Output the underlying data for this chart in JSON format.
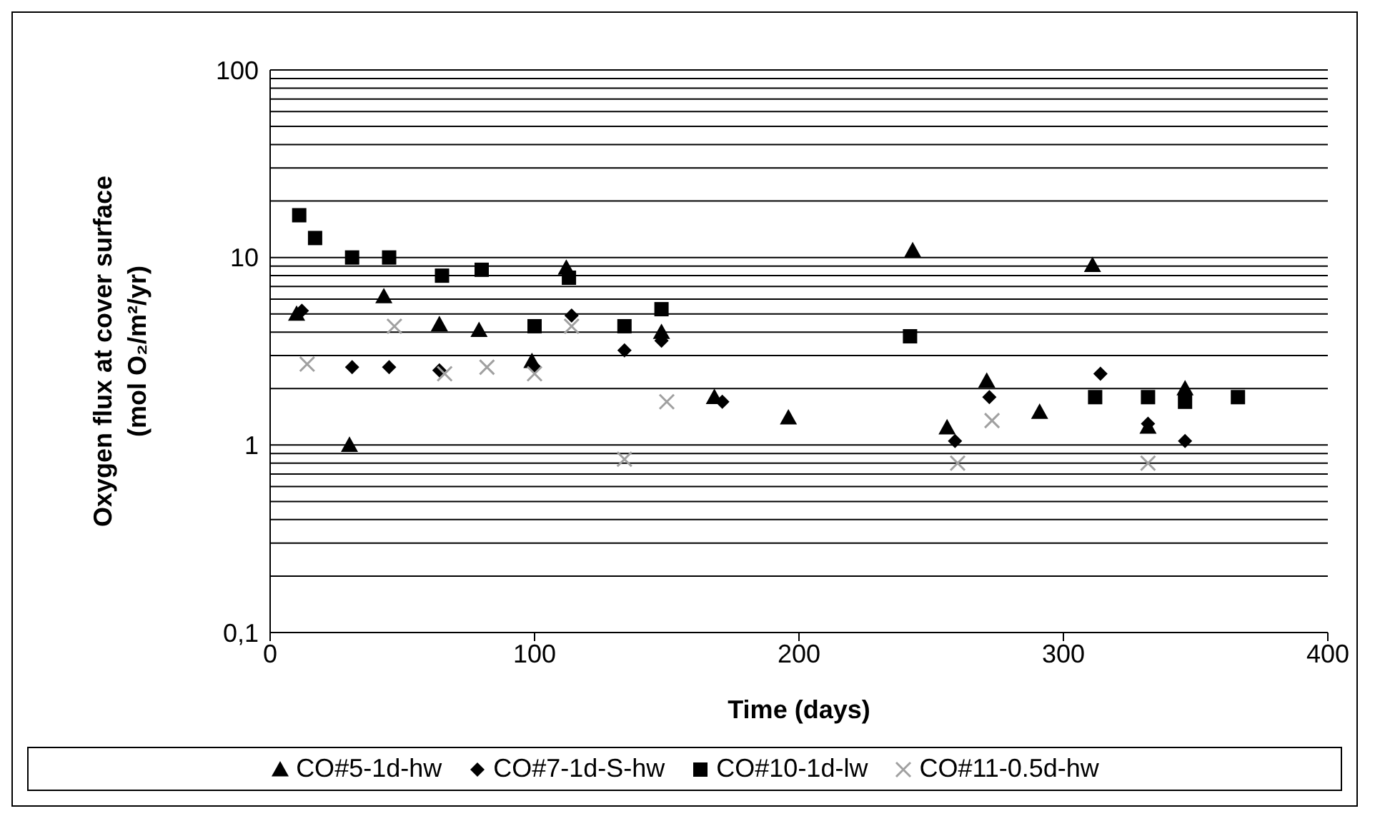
{
  "chart_data": {
    "type": "scatter",
    "xlabel": "Time (days)",
    "ylabel": "Oxygen flux at cover surface (mol O₂/m²/yr)",
    "log": "y",
    "xlim": [
      0,
      400
    ],
    "xticks": [
      0,
      100,
      200,
      300,
      400
    ],
    "ylim": [
      0.1,
      100
    ],
    "yticks": [
      {
        "value": 0.1,
        "label": "0,1"
      },
      {
        "value": 0.2,
        "label": null
      },
      {
        "value": 0.3,
        "label": null
      },
      {
        "value": 0.4,
        "label": null
      },
      {
        "value": 0.5,
        "label": null
      },
      {
        "value": 0.6,
        "label": null
      },
      {
        "value": 0.7,
        "label": null
      },
      {
        "value": 0.8,
        "label": null
      },
      {
        "value": 0.9,
        "label": null
      },
      1,
      {
        "value": 2,
        "label": null
      },
      {
        "value": 3,
        "label": null
      },
      {
        "value": 4,
        "label": null
      },
      {
        "value": 5,
        "label": null
      },
      {
        "value": 6,
        "label": null
      },
      {
        "value": 7,
        "label": null
      },
      {
        "value": 8,
        "label": null
      },
      {
        "value": 9,
        "label": null
      },
      10,
      {
        "value": 20,
        "label": null
      },
      {
        "value": 30,
        "label": null
      },
      {
        "value": 40,
        "label": null
      },
      {
        "value": 50,
        "label": null
      },
      {
        "value": 60,
        "label": null
      },
      {
        "value": 70,
        "label": null
      },
      {
        "value": 80,
        "label": null
      },
      {
        "value": 90,
        "label": null
      },
      100
    ],
    "grid": "y",
    "legend": "bottom",
    "series": [
      {
        "name": "CO#5-1d-hw",
        "color": "#000000",
        "marker": "triangle",
        "x": [
          10,
          30,
          43,
          64,
          79,
          99,
          112,
          148,
          168,
          196,
          243,
          256,
          271,
          291,
          311,
          332,
          346
        ],
        "values": [
          5.0,
          1.0,
          6.2,
          4.4,
          4.1,
          2.8,
          8.8,
          4.0,
          1.8,
          1.4,
          10.9,
          1.24,
          2.2,
          1.5,
          9.1,
          1.25,
          2.0
        ]
      },
      {
        "name": "CO#7-1d-S-hw",
        "color": "#000000",
        "marker": "diamond",
        "x": [
          12,
          31,
          45,
          64,
          100,
          114,
          134,
          148,
          171,
          259,
          272,
          314,
          332,
          346
        ],
        "values": [
          5.2,
          2.6,
          2.6,
          2.5,
          2.6,
          4.9,
          3.2,
          3.6,
          1.7,
          1.05,
          1.8,
          2.4,
          1.3,
          1.05
        ]
      },
      {
        "name": "CO#10-1d-lw",
        "color": "#000000",
        "marker": "square",
        "x": [
          11,
          17,
          31,
          45,
          65,
          80,
          100,
          113,
          134,
          148,
          242,
          312,
          332,
          346,
          366
        ],
        "values": [
          16.8,
          12.7,
          10,
          10,
          8.0,
          8.6,
          4.3,
          7.8,
          4.3,
          5.3,
          3.8,
          1.8,
          1.8,
          1.7,
          1.8
        ]
      },
      {
        "name": "CO#11-0.5d-hw",
        "color": "#a0a0a0",
        "marker": "cross",
        "x": [
          14,
          47,
          66,
          82,
          100,
          114,
          134,
          150,
          260,
          273,
          332
        ],
        "values": [
          2.7,
          4.3,
          2.4,
          2.6,
          2.4,
          4.3,
          0.84,
          1.7,
          0.8,
          1.35,
          0.8
        ]
      }
    ]
  }
}
